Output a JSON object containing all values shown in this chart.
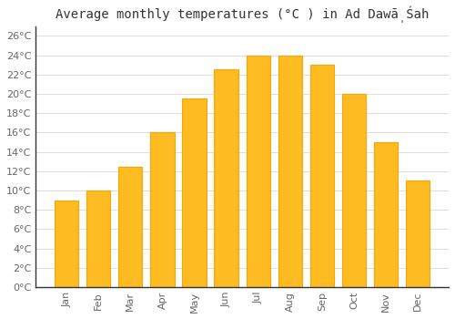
{
  "title": "Average monthly temperatures (°C ) in Ad Dawā̩Śah",
  "months": [
    "Jan",
    "Feb",
    "Mar",
    "Apr",
    "May",
    "Jun",
    "Jul",
    "Aug",
    "Sep",
    "Oct",
    "Nov",
    "Dec"
  ],
  "values": [
    9,
    10,
    12.5,
    16,
    19.5,
    22.5,
    24,
    24,
    23,
    20,
    15,
    11
  ],
  "bar_color": "#FFBB22",
  "bar_edge_color": "#FFA500",
  "background_color": "#FFFFFF",
  "grid_color": "#DDDDDD",
  "ylim": [
    0,
    27
  ],
  "yticks": [
    0,
    2,
    4,
    6,
    8,
    10,
    12,
    14,
    16,
    18,
    20,
    22,
    24,
    26
  ],
  "title_fontsize": 10,
  "tick_fontsize": 8,
  "tick_color": "#666666",
  "spine_color": "#333333"
}
